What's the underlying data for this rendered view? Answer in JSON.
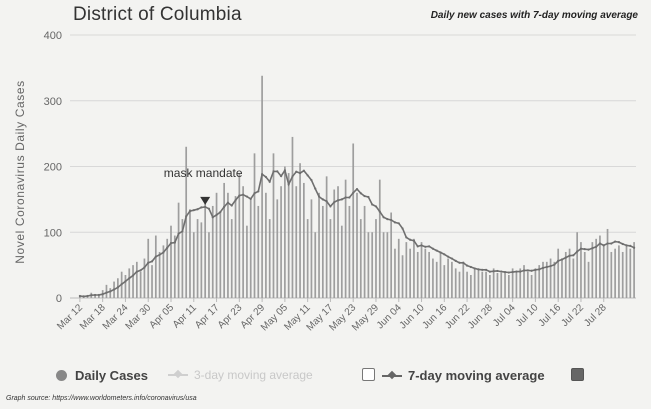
{
  "title": "District of Columbia",
  "subtitle": "Daily new cases with 7-day moving average",
  "source": "Graph source: https://www.worldometers.info/coronavirus/usa",
  "legend": {
    "daily_cases": "Daily Cases",
    "ma_faded": "3-day moving average",
    "ma_7day": "7-day moving average"
  },
  "colors": {
    "bars": "#9e9e9e",
    "line": "#6f6f6f",
    "grid": "#d8d8d8",
    "axis_text": "#666666"
  },
  "chart_data": {
    "type": "bar",
    "ylabel": "Novel Coronavirus Daily Cases",
    "ylim": [
      0,
      400
    ],
    "yticks": [
      0,
      100,
      200,
      300,
      400
    ],
    "xtick_labels": [
      "Mar 12",
      "Mar 18",
      "Mar 24",
      "Mar 30",
      "Apr 05",
      "Apr 11",
      "Apr 17",
      "Apr 23",
      "Apr 29",
      "May 05",
      "May 11",
      "May 17",
      "May 23",
      "May 29",
      "Jun 04",
      "Jun 10",
      "Jun 16",
      "Jun 22",
      "Jun 28",
      "Jul 04",
      "Jul 10",
      "Jul 16",
      "Jul 22",
      "Jul 28"
    ],
    "annotation": "mask mandate",
    "annotation_day": 33,
    "start_label": "Mar 12",
    "daily_cases": [
      3,
      2,
      4,
      8,
      6,
      5,
      12,
      20,
      15,
      25,
      30,
      40,
      35,
      45,
      50,
      55,
      40,
      60,
      90,
      50,
      95,
      70,
      80,
      90,
      110,
      95,
      145,
      120,
      230,
      135,
      100,
      120,
      115,
      150,
      100,
      140,
      160,
      130,
      175,
      160,
      120,
      155,
      190,
      170,
      110,
      150,
      220,
      140,
      338,
      160,
      120,
      220,
      150,
      170,
      200,
      190,
      245,
      170,
      205,
      175,
      120,
      150,
      100,
      160,
      140,
      185,
      120,
      165,
      170,
      110,
      180,
      140,
      235,
      160,
      120,
      140,
      100,
      100,
      120,
      180,
      100,
      100,
      130,
      75,
      90,
      65,
      85,
      75,
      90,
      70,
      85,
      75,
      70,
      60,
      55,
      70,
      50,
      60,
      55,
      45,
      40,
      55,
      40,
      35,
      45,
      45,
      40,
      40,
      35,
      45,
      38,
      38,
      40,
      35,
      45,
      40,
      45,
      50,
      40,
      35,
      45,
      50,
      55,
      55,
      60,
      55,
      75,
      60,
      70,
      75,
      60,
      100,
      85,
      70,
      55,
      85,
      90,
      95,
      80,
      105,
      70,
      75,
      80,
      70,
      80,
      75,
      85
    ]
  }
}
